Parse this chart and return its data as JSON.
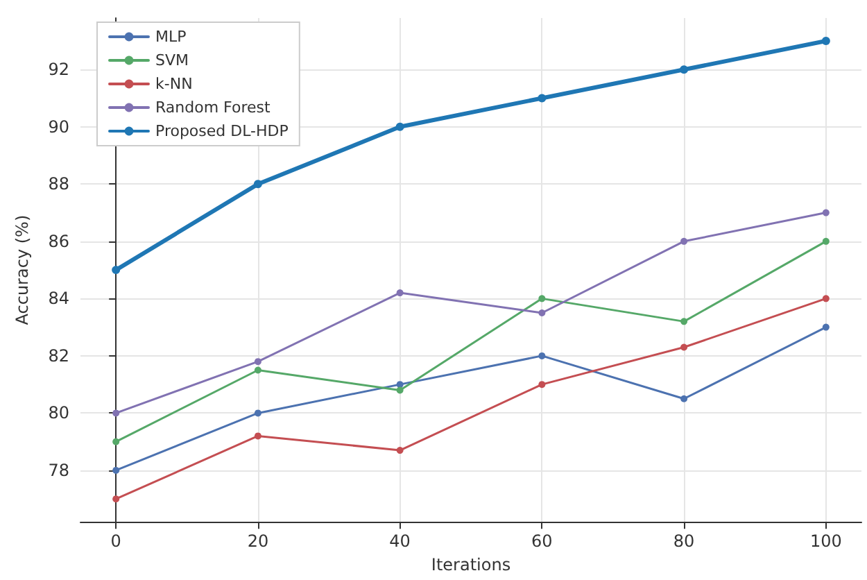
{
  "chart_data": {
    "type": "line",
    "xlabel": "Iterations",
    "ylabel": "Accuracy (%)",
    "x": [
      0,
      20,
      40,
      60,
      80,
      100
    ],
    "xlim": [
      -5,
      105
    ],
    "xticks": [
      0,
      20,
      40,
      60,
      80,
      100
    ],
    "ylim": [
      76.2,
      93.8
    ],
    "yticks": [
      78,
      80,
      82,
      84,
      86,
      88,
      90,
      92
    ],
    "grid": true,
    "legend": "top left",
    "marker": "circle",
    "line_style": "solid",
    "series": [
      {
        "name": "MLP",
        "color": "#4c72b0",
        "values": [
          78,
          80,
          81,
          82,
          80.5,
          83
        ]
      },
      {
        "name": "SVM",
        "color": "#55a868",
        "values": [
          79,
          81.5,
          80.8,
          84,
          83.2,
          86
        ]
      },
      {
        "name": "k-NN",
        "color": "#c44e52",
        "values": [
          77,
          79.2,
          78.7,
          81,
          82.3,
          84
        ]
      },
      {
        "name": "Random Forest",
        "color": "#8172b2",
        "values": [
          80,
          81.8,
          84.2,
          83.5,
          86,
          87
        ]
      },
      {
        "name": "Proposed DL-HDP",
        "color": "#1f77b4",
        "values": [
          85,
          88,
          90,
          91,
          92,
          93
        ]
      }
    ]
  }
}
